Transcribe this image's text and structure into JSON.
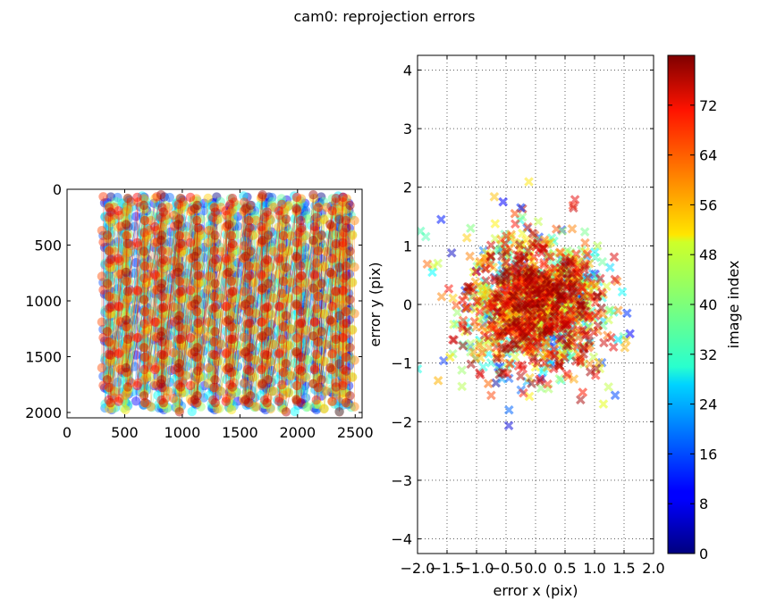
{
  "figure_title": "cam0: reprojection errors",
  "chart_data": [
    {
      "type": "scatter",
      "title": "",
      "description_series": "Detected corner points per image, coloured by image index and connected by lines",
      "xlabel": "",
      "ylabel": "",
      "xlim": [
        0,
        2560
      ],
      "ylim": [
        2048,
        0
      ],
      "xticks": [
        0,
        500,
        1000,
        1500,
        2000,
        2500
      ],
      "yticks": [
        0,
        500,
        1000,
        1500,
        2000
      ],
      "xtick_labels": [
        "0",
        "500",
        "1000",
        "1500",
        "2000",
        "2500"
      ],
      "ytick_labels": [
        "0",
        "500",
        "1000",
        "1500",
        "2000"
      ],
      "grid_x": [
        370,
        520,
        680,
        830,
        980,
        1130,
        1280,
        1430,
        1580,
        1730,
        1880,
        2030,
        2180,
        2330,
        2420
      ],
      "grid_y": [
        120,
        240,
        380,
        520,
        660,
        800,
        940,
        1080,
        1220,
        1360,
        1500,
        1640,
        1780,
        1920
      ],
      "color_range": [
        0,
        80
      ],
      "marker": "circle"
    },
    {
      "type": "scatter",
      "title": "",
      "xlabel": "error x (pix)",
      "ylabel": "error y (pix)",
      "xlim": [
        -2.0,
        2.0
      ],
      "ylim": [
        -4.25,
        4.25
      ],
      "xticks": [
        -2.0,
        -1.5,
        -1.0,
        -0.5,
        0.0,
        0.5,
        1.0,
        1.5,
        2.0
      ],
      "yticks": [
        -4,
        -3,
        -2,
        -1,
        0,
        1,
        2,
        3,
        4
      ],
      "xtick_labels": [
        "−2.0",
        "−1.5",
        "−1.0",
        "−0.5",
        "0.0",
        "0.5",
        "1.0",
        "1.5",
        "2.0"
      ],
      "ytick_labels": [
        "−4",
        "−3",
        "−2",
        "−1",
        "0",
        "1",
        "2",
        "3",
        "4"
      ],
      "grid": true,
      "marker": "x",
      "color_range": [
        0,
        80
      ],
      "std_x": 0.55,
      "std_y": 0.55,
      "points": [
        [
          -1.6,
          1.45,
          12
        ],
        [
          -0.55,
          1.75,
          10
        ],
        [
          -0.25,
          1.65,
          14
        ],
        [
          -0.45,
          -1.8,
          18
        ],
        [
          1.6,
          -0.5,
          10
        ],
        [
          1.55,
          -0.15,
          14
        ],
        [
          -1.65,
          -1.3,
          56
        ],
        [
          -1.95,
          1.25,
          36
        ],
        [
          -2.0,
          -1.1,
          32
        ],
        [
          -1.75,
          0.55,
          30
        ],
        [
          1.35,
          -1.55,
          16
        ],
        [
          1.15,
          -1.7,
          48
        ],
        [
          -0.35,
          1.55,
          64
        ],
        [
          0.15,
          1.1,
          60
        ],
        [
          -1.1,
          1.3,
          40
        ],
        [
          1.05,
          1.0,
          44
        ],
        [
          -1.45,
          -0.9,
          52
        ],
        [
          1.4,
          -0.6,
          28
        ],
        [
          0.8,
          -1.5,
          68
        ],
        [
          -0.8,
          -1.35,
          62
        ]
      ]
    }
  ],
  "colorbar": {
    "label": "image index",
    "min": 0,
    "max": 80,
    "ticks": [
      0,
      8,
      16,
      24,
      32,
      40,
      48,
      56,
      64,
      72
    ],
    "tick_labels": [
      "0",
      "8",
      "16",
      "24",
      "32",
      "40",
      "48",
      "56",
      "64",
      "72"
    ]
  }
}
